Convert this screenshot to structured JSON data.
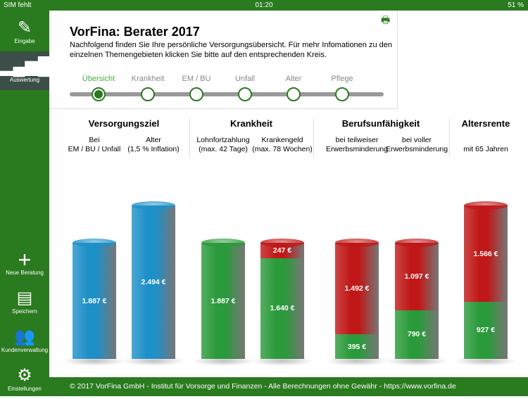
{
  "status": {
    "carrier": "SIM fehlt",
    "time": "01:20",
    "battery": "51 %"
  },
  "sidebar": {
    "items": [
      {
        "label": "Eingabe",
        "icon": "pencil-icon"
      },
      {
        "label": "Auswertung",
        "icon": "bar-chart-icon",
        "active": true
      },
      {
        "label": "Neue Beratung",
        "icon": "plus-icon"
      },
      {
        "label": "Speichern",
        "icon": "save-icon"
      },
      {
        "label": "Kundenverwaltung",
        "icon": "users-icon"
      },
      {
        "label": "Einstellungen",
        "icon": "gear-icon"
      }
    ]
  },
  "header": {
    "title": "VorFina: Berater 2017",
    "subtitle": "Nachfolgend finden Sie Ihre persönliche Versorgungsübersicht. Für mehr Infomationen zu den einzelnen Themengebieten klicken Sie bitte auf den entsprechenden Kreis."
  },
  "steps": [
    "Übersicht",
    "Krankheit",
    "EM / BU",
    "Unfall",
    "Alter",
    "Pflege"
  ],
  "active_step": 0,
  "categories": [
    {
      "title": "Versorgungsziel",
      "subs": [
        [
          "Bei",
          "EM / BU / Unfall"
        ],
        [
          "Alter",
          "(1,5 % Inflation)"
        ]
      ]
    },
    {
      "title": "Krankheit",
      "subs": [
        [
          "Lohnfortzahlung",
          "(max. 42 Tage)"
        ],
        [
          "Krankengeld",
          "(max. 78 Wochen)"
        ]
      ]
    },
    {
      "title": "Berufsunfähigkeit",
      "subs": [
        [
          "bei teilweiser",
          "Erwerbsminderung"
        ],
        [
          "bei voller",
          "Erwerbsminderung"
        ]
      ]
    },
    {
      "title": "Altersrente",
      "subs": [
        [
          "",
          "mit 65 Jahren"
        ]
      ]
    }
  ],
  "chart_data": {
    "type": "bar",
    "stacked": true,
    "unit": "€",
    "colors": {
      "target": "#1e90c8",
      "covered": "#2a9a3a",
      "gap": "#c01818"
    },
    "bars": [
      {
        "segments": [
          {
            "kind": "target",
            "value": 1887,
            "label": "1.887 €"
          }
        ]
      },
      {
        "segments": [
          {
            "kind": "target",
            "value": 2494,
            "label": "2.494 €"
          }
        ]
      },
      {
        "segments": [
          {
            "kind": "covered",
            "value": 1887,
            "label": "1.887 €"
          }
        ]
      },
      {
        "segments": [
          {
            "kind": "covered",
            "value": 1640,
            "label": "1.640 €"
          },
          {
            "kind": "gap",
            "value": 247,
            "label": "247 €"
          }
        ]
      },
      {
        "segments": [
          {
            "kind": "covered",
            "value": 395,
            "label": "395 €"
          },
          {
            "kind": "gap",
            "value": 1492,
            "label": "1.492 €"
          }
        ]
      },
      {
        "segments": [
          {
            "kind": "covered",
            "value": 790,
            "label": "790 €"
          },
          {
            "kind": "gap",
            "value": 1097,
            "label": "1.097 €"
          }
        ]
      },
      {
        "segments": [
          {
            "kind": "covered",
            "value": 927,
            "label": "927 €"
          },
          {
            "kind": "gap",
            "value": 1566,
            "label": "1.566 €"
          }
        ]
      }
    ]
  },
  "footer": "© 2017 VorFina GmbH - Institut für Vorsorge und Finanzen - Alle Berechnungen ohne Gewähr - https://www.vorfina.de"
}
